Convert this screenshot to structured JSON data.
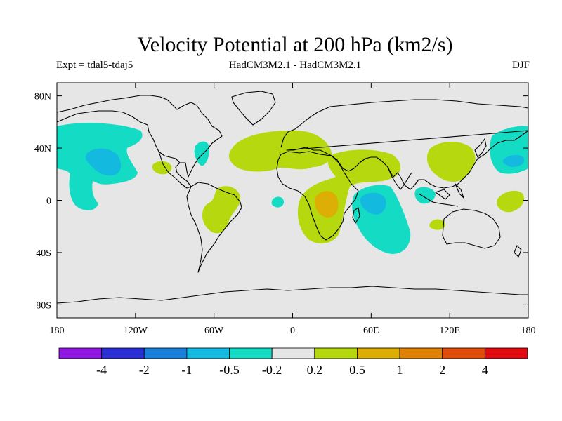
{
  "title": "Velocity Potential at 200 hPa (km2/s)",
  "subtitle_left": "Expt = tdal5-tdaj5",
  "subtitle_center": "HadCM3M2.1 - HadCM3M2.1",
  "subtitle_right": "DJF",
  "map": {
    "ocean_color": "#e6e6e6",
    "coast_color": "#000000",
    "lon_range": [
      -180,
      180
    ],
    "lat_range": [
      -90,
      90
    ],
    "x_ticks": [
      {
        "lon": -180,
        "label": "180"
      },
      {
        "lon": -120,
        "label": "120W"
      },
      {
        "lon": -60,
        "label": "60W"
      },
      {
        "lon": 0,
        "label": "0"
      },
      {
        "lon": 60,
        "label": "60E"
      },
      {
        "lon": 120,
        "label": "120E"
      },
      {
        "lon": 180,
        "label": "180"
      }
    ],
    "y_ticks": [
      {
        "lat": 80,
        "label": "80N"
      },
      {
        "lat": 40,
        "label": "40N"
      },
      {
        "lat": 0,
        "label": "0"
      },
      {
        "lat": -40,
        "label": "40S"
      },
      {
        "lat": -80,
        "label": "80S"
      }
    ]
  },
  "colorbar": {
    "colors": [
      "#8f17e0",
      "#2a2fd4",
      "#1a7fd9",
      "#14b9df",
      "#14dcc4",
      "#e6e6e6",
      "#b5d90e",
      "#ddae05",
      "#e08206",
      "#e04c0a",
      "#e00a10"
    ],
    "labels": [
      "-4",
      "-2",
      "-1",
      "-0.5",
      "-0.2",
      "0.2",
      "0.5",
      "1",
      "2",
      "4"
    ]
  }
}
